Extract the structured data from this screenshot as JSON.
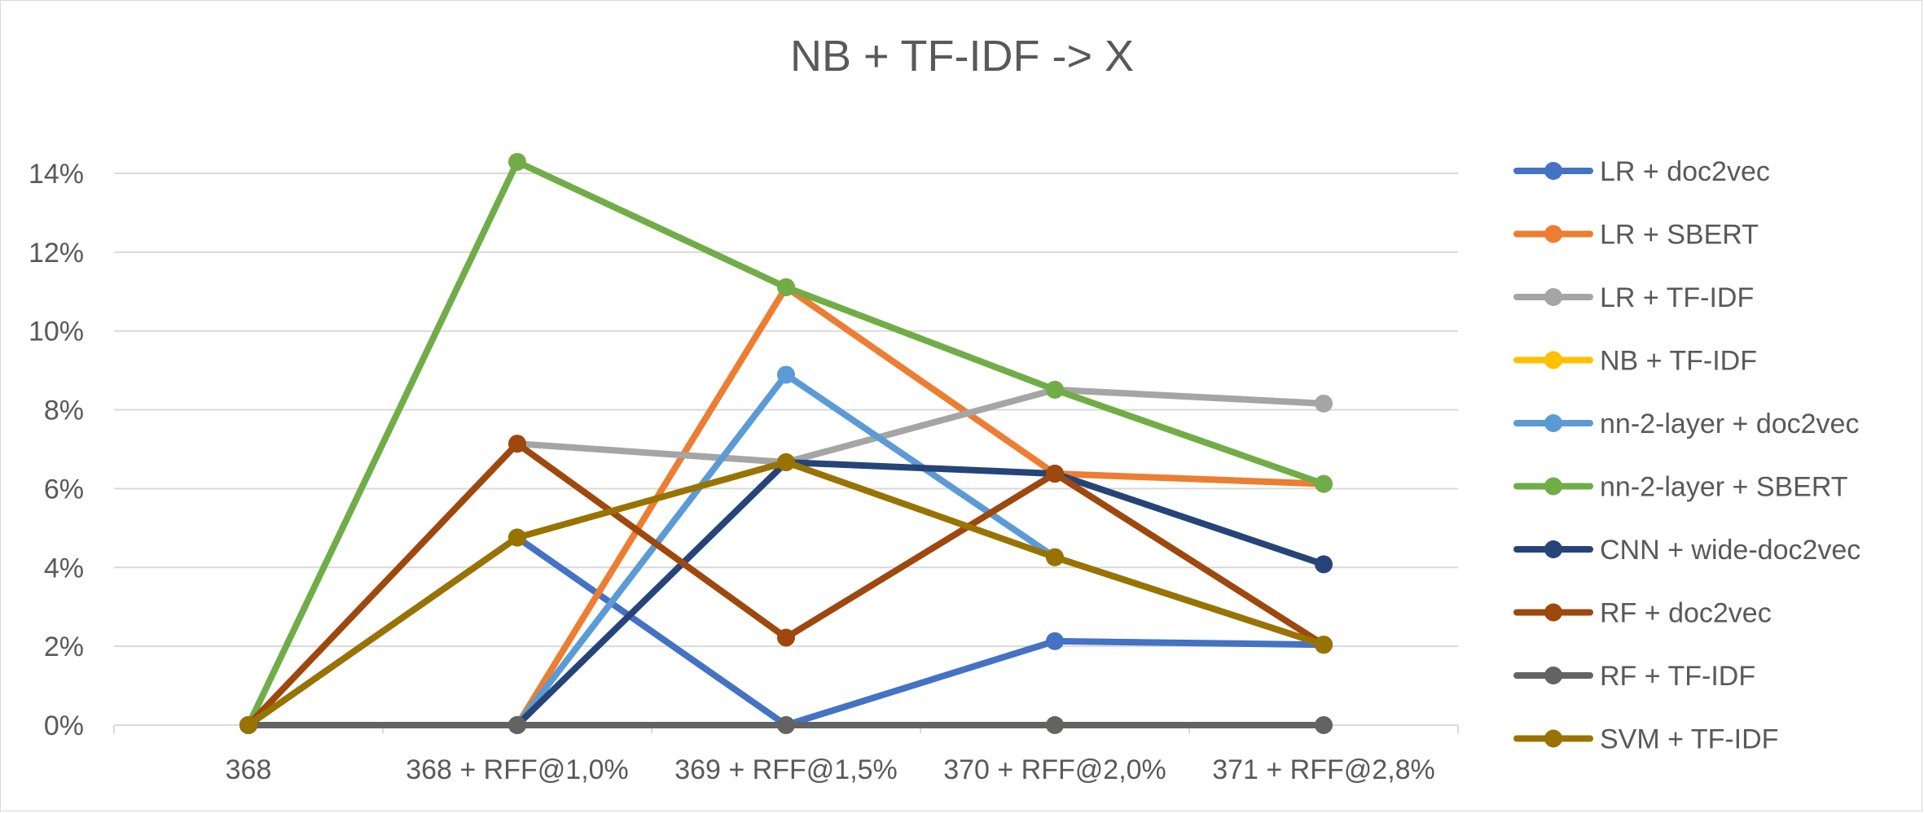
{
  "chart_data": {
    "type": "line",
    "title": "NB + TF-IDF -> X",
    "xlabel": "",
    "ylabel": "",
    "categories": [
      "368",
      "368 + RFF@1,0%",
      "369 + RFF@1,5%",
      "370 + RFF@2,0%",
      "371 + RFF@2,8%"
    ],
    "y_ticks": [
      "0%",
      "2%",
      "4%",
      "6%",
      "8%",
      "10%",
      "12%",
      "14%"
    ],
    "ylim": [
      0,
      0.14
    ],
    "grid": true,
    "legend_position": "right",
    "series": [
      {
        "name": "LR + doc2vec",
        "color": "#4472C4",
        "values": [
          0,
          0.0476,
          0,
          0.0213,
          0.0204
        ]
      },
      {
        "name": "LR + SBERT",
        "color": "#ED7D31",
        "values": [
          0,
          0,
          0.1111,
          0.0638,
          0.0612
        ]
      },
      {
        "name": "LR + TF-IDF",
        "color": "#A5A5A5",
        "values": [
          0,
          0.0714,
          0.0667,
          0.0851,
          0.0816
        ]
      },
      {
        "name": "NB + TF-IDF",
        "color": "#FFC000",
        "values": [
          0,
          0,
          0,
          0,
          0
        ]
      },
      {
        "name": "nn-2-layer + doc2vec",
        "color": "#5B9BD5",
        "values": [
          0,
          0,
          0.0889,
          0.0426,
          0.0204
        ]
      },
      {
        "name": "nn-2-layer + SBERT",
        "color": "#70AD47",
        "values": [
          0,
          0.1429,
          0.1111,
          0.0851,
          0.0612
        ]
      },
      {
        "name": "CNN + wide-doc2vec",
        "color": "#264478",
        "values": [
          0,
          0,
          0.0667,
          0.0638,
          0.0408
        ]
      },
      {
        "name": "RF + doc2vec",
        "color": "#9E480E",
        "values": [
          0,
          0.0714,
          0.0222,
          0.0638,
          0.0204
        ]
      },
      {
        "name": "RF + TF-IDF",
        "color": "#636363",
        "values": [
          0,
          0,
          0,
          0,
          0
        ]
      },
      {
        "name": "SVM + TF-IDF",
        "color": "#997300",
        "values": [
          0,
          0.0476,
          0.0667,
          0.0426,
          0.0204
        ]
      }
    ]
  }
}
